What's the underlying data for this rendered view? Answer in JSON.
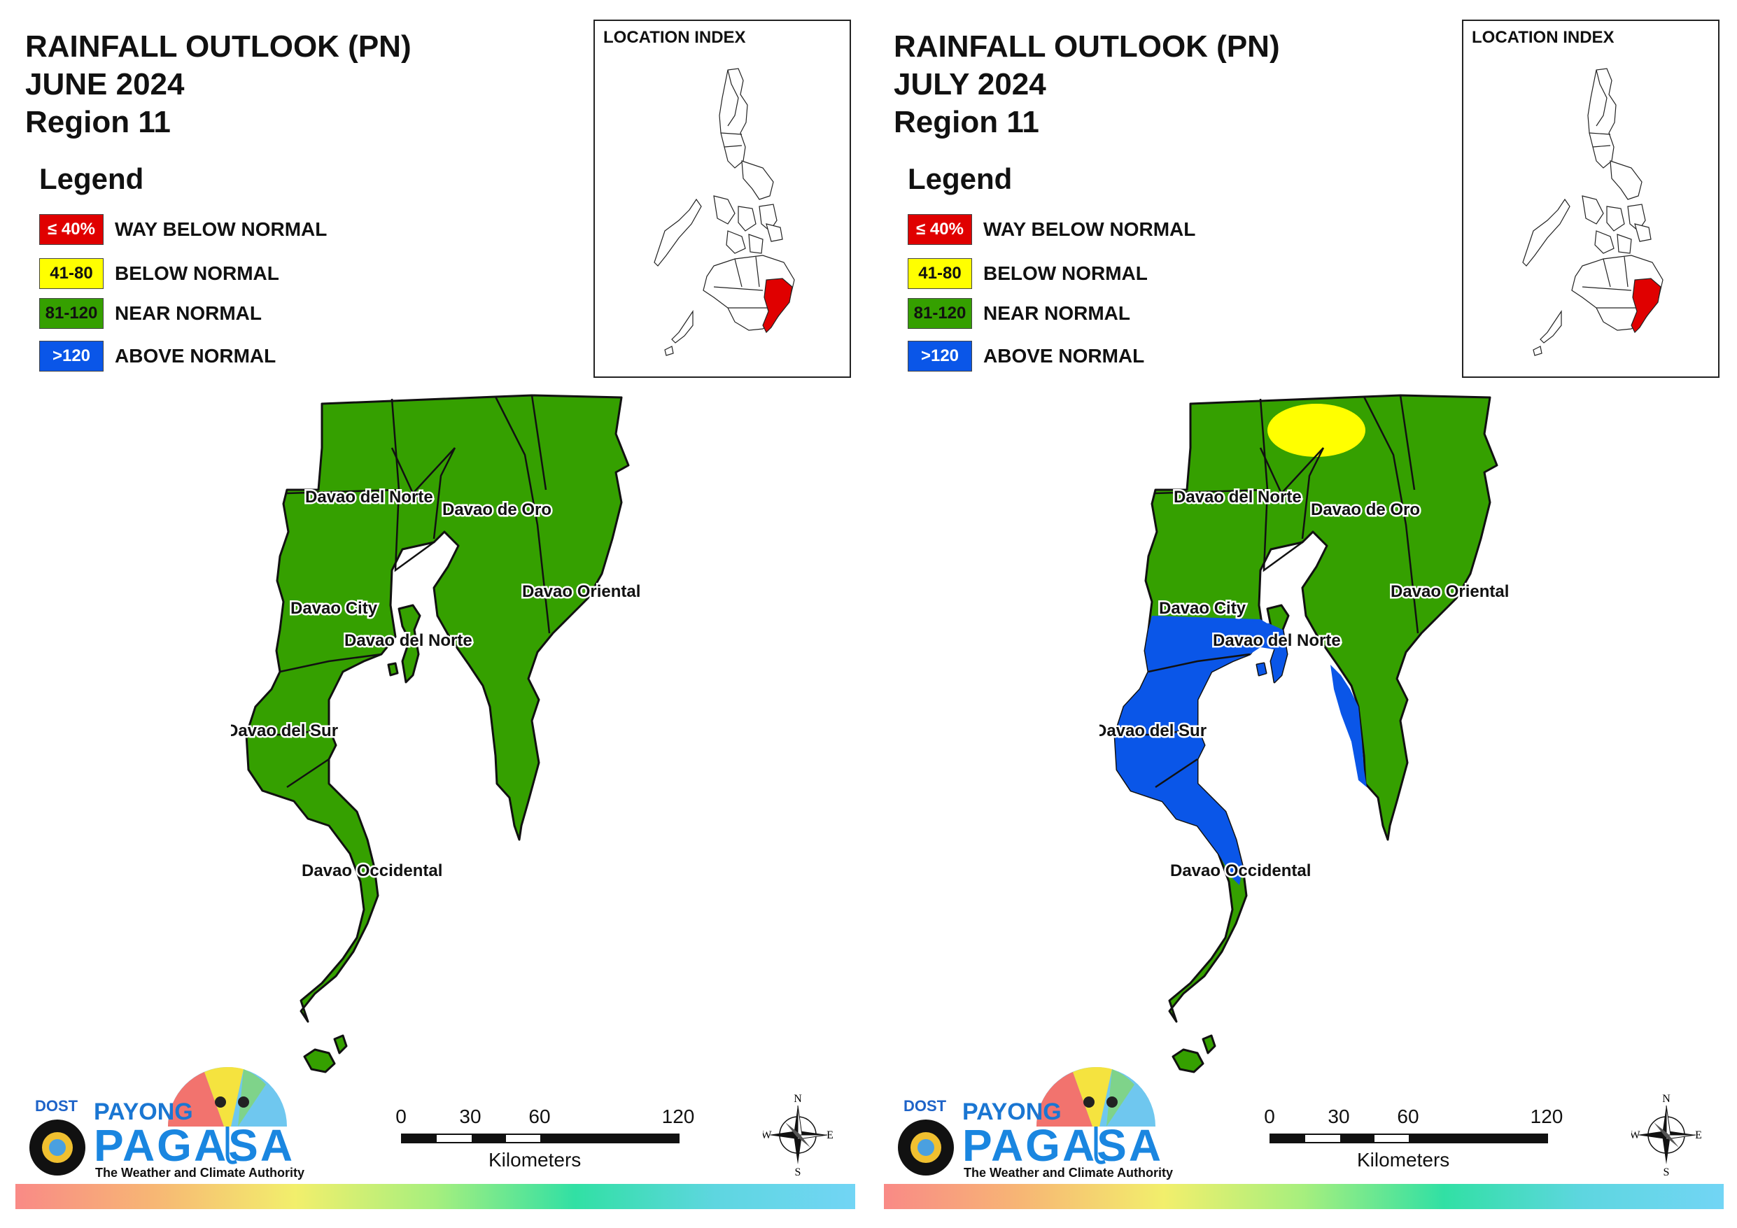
{
  "colors": {
    "way_below": "#e00000",
    "below": "#ffff00",
    "near": "#35a000",
    "above": "#0a56e8",
    "border": "#111111",
    "index_highlight": "#e00000"
  },
  "panels": [
    {
      "title_line1": "RAINFALL OUTLOOK (PN)",
      "title_line2": "JUNE 2024",
      "title_line3": "Region 11",
      "legend_title": "Legend",
      "legend": [
        {
          "code": "≤ 40%",
          "label": "WAY BELOW NORMAL",
          "category": "way_below"
        },
        {
          "code": "41-80",
          "label": "BELOW NORMAL",
          "category": "below"
        },
        {
          "code": "81-120",
          "label": "NEAR NORMAL",
          "category": "near"
        },
        {
          "code": ">120",
          "label": "ABOVE NORMAL",
          "category": "above"
        }
      ],
      "location_index_label": "LOCATION INDEX",
      "province_labels": [
        "Davao del Norte",
        "Davao de Oro",
        "Davao City",
        "Davao del Norte",
        "Davao Oriental",
        "Davao del Sur",
        "Davao Occidental"
      ],
      "overlays": [],
      "scale": {
        "ticks": [
          "0",
          "30",
          "60",
          "120"
        ],
        "unit": "Kilometers"
      },
      "compass": {
        "n": "N",
        "s": "S",
        "e": "E",
        "w": "W"
      },
      "logo": {
        "dost": "DOST",
        "payong": "PAYONG",
        "pagasa": "PAGASA",
        "tagline": "The Weather and Climate Authority"
      }
    },
    {
      "title_line1": "RAINFALL OUTLOOK (PN)",
      "title_line2": "JULY 2024",
      "title_line3": "Region 11",
      "legend_title": "Legend",
      "legend": [
        {
          "code": "≤ 40%",
          "label": "WAY BELOW NORMAL",
          "category": "way_below"
        },
        {
          "code": "41-80",
          "label": "BELOW NORMAL",
          "category": "below"
        },
        {
          "code": "81-120",
          "label": "NEAR NORMAL",
          "category": "near"
        },
        {
          "code": ">120",
          "label": "ABOVE NORMAL",
          "category": "above"
        }
      ],
      "location_index_label": "LOCATION INDEX",
      "province_labels": [
        "Davao del Norte",
        "Davao de Oro",
        "Davao City",
        "Davao del Norte",
        "Davao Oriental",
        "Davao del Sur",
        "Davao Occidental"
      ],
      "overlays": [
        "below_north",
        "above_west",
        "above_east_strip",
        "above_island"
      ],
      "scale": {
        "ticks": [
          "0",
          "30",
          "60",
          "120"
        ],
        "unit": "Kilometers"
      },
      "compass": {
        "n": "N",
        "s": "S",
        "e": "E",
        "w": "W"
      },
      "logo": {
        "dost": "DOST",
        "payong": "PAYONG",
        "pagasa": "PAGASA",
        "tagline": "The Weather and Climate Authority"
      }
    }
  ]
}
